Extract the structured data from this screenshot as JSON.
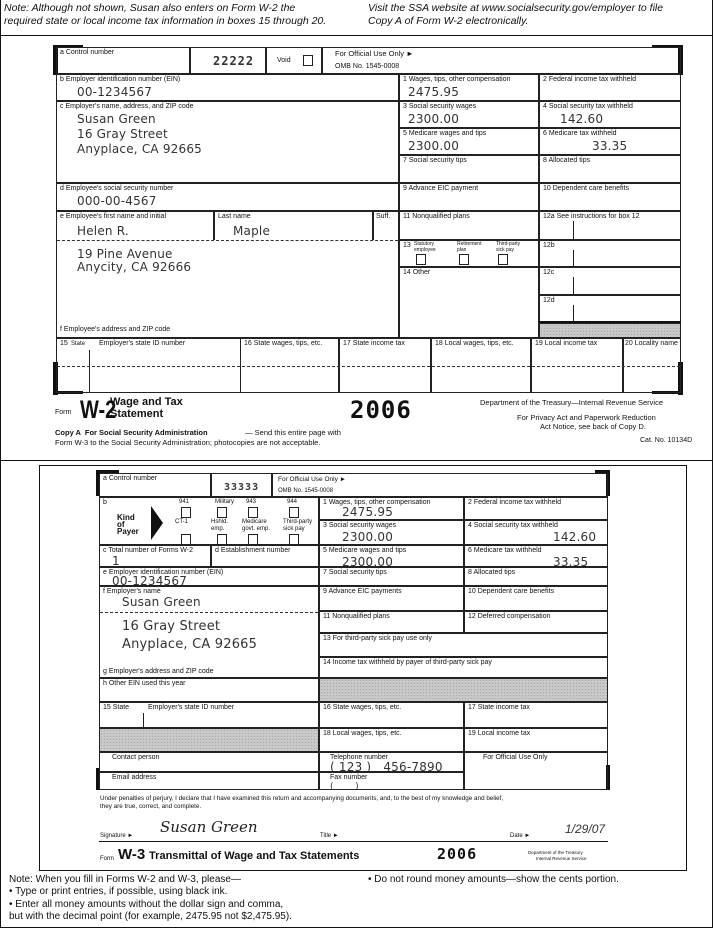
{
  "top_notes": {
    "left_line1": "Note: Although not shown, Susan also enters on Form W-2 the",
    "left_line2": "required state or local income tax information in boxes 15 through 20.",
    "right_line1": "Visit the SSA website at www.socialsecurity.gov/employer to file",
    "right_line2": "Copy A of Form W-2 electronically."
  },
  "w2": {
    "a": {
      "label": "a  Control number",
      "value": "22222"
    },
    "void_label": "Void",
    "official": {
      "line1": "For Official Use Only ►",
      "line2": "OMB No. 1545-0008"
    },
    "b": {
      "label": "b  Employer identification number (EIN)",
      "value": "00-1234567"
    },
    "box1": {
      "label": "1   Wages, tips, other compensation",
      "value": "2475.95"
    },
    "box2": {
      "label": "2   Federal income tax withheld",
      "value": ""
    },
    "c": {
      "label": "c  Employer's name, address, and ZIP code",
      "value": "Susan Green\n16 Gray Street\nAnyplace, CA 92665"
    },
    "box3": {
      "label": "3   Social security wages",
      "value": "2300.00"
    },
    "box4": {
      "label": "4   Social security tax withheld",
      "value": "142.60"
    },
    "box5": {
      "label": "5   Medicare wages and tips",
      "value": "2300.00"
    },
    "box6": {
      "label": "6   Medicare tax withheld",
      "value": "33.35"
    },
    "box7": {
      "label": "7   Social security tips",
      "value": ""
    },
    "box8": {
      "label": "8   Allocated tips",
      "value": ""
    },
    "d": {
      "label": "d  Employee's social security number",
      "value": "000-00-4567"
    },
    "box9": {
      "label": "9   Advance EIC payment",
      "value": ""
    },
    "box10": {
      "label": "10   Dependent care benefits",
      "value": ""
    },
    "e": {
      "label": "e  Employee's first name and initial",
      "value": "Helen R."
    },
    "last": {
      "label": "Last name",
      "value": "Maple"
    },
    "suff": {
      "label": "Suff."
    },
    "box11": {
      "label": "11   Nonqualified plans"
    },
    "box12a": {
      "label": "12a See instructions for box 12"
    },
    "address": {
      "value": "19 Pine Avenue\nAnycity, CA 92666",
      "label": "f   Employee's address and ZIP code"
    },
    "box13": {
      "label": "13",
      "statutory": "Statutory employee",
      "retirement": "Retirement plan",
      "thirdparty": "Third-party sick pay"
    },
    "box14": {
      "label": "14   Other"
    },
    "box12b": {
      "label": "12b"
    },
    "box12c": {
      "label": "12c"
    },
    "box12d": {
      "label": "12d"
    },
    "code_label": "Code",
    "box15": {
      "label": "15",
      "state": "State",
      "id": "Employer's state ID number"
    },
    "box16": {
      "label": "16 State wages, tips, etc."
    },
    "box17": {
      "label": "17  State income tax"
    },
    "box18": {
      "label": "18 Local wages, tips, etc."
    },
    "box19": {
      "label": "19  Local income tax"
    },
    "box20": {
      "label": "20 Locality name"
    },
    "footer": {
      "form": "Form",
      "form_name": "W-2",
      "title1": "Wage and Tax",
      "title2": "Statement",
      "year": "2006",
      "dept": "Department of the Treasury—Internal Revenue Service",
      "privacy1": "For Privacy Act and Paperwork Reduction",
      "privacy2": "Act Notice, see back of Copy D.",
      "copy1_bold": "Copy A  For Social Security Administration",
      "copy1_rest": " — Send this entire page with",
      "copy2": "Form W-3 to the Social Security Administration; photocopies are not acceptable.",
      "cat": "Cat. No. 10134D"
    }
  },
  "w3": {
    "a": {
      "label": "a   Control number",
      "value": "33333"
    },
    "official": {
      "line1": "For Official Use Only ►",
      "line2": "OMB No. 1545-0008"
    },
    "b": {
      "label": "b",
      "kind": "Kind\nof\nPayer",
      "top": [
        "941",
        "Military",
        "943",
        "944"
      ],
      "bottom": [
        "CT-1",
        "Hshld.\nemp.",
        "Medicare\ngovt. emp.",
        "Third-party\nsick pay"
      ]
    },
    "c": {
      "label": "c   Total number of Forms W-2",
      "value": "1"
    },
    "d": {
      "label": "d   Establishment number"
    },
    "e": {
      "label": "e   Employer identification number (EIN)",
      "value": "00-1234567"
    },
    "f": {
      "label": "f   Employer's name",
      "value": "Susan Green"
    },
    "address": {
      "value": "16 Gray Street\nAnyplace, CA 92665"
    },
    "g": {
      "label": "g   Employer's address and ZIP code"
    },
    "h": {
      "label": "h   Other EIN used this year"
    },
    "box1": {
      "label": "1   Wages, tips, other compensation",
      "value": "2475.95"
    },
    "box2": {
      "label": "2   Federal income tax withheld"
    },
    "box3": {
      "label": "3   Social security wages",
      "value": "2300.00"
    },
    "box4": {
      "label": "4   Social security tax withheld",
      "value": "142.60"
    },
    "box5": {
      "label": "5   Medicare wages and tips",
      "value": "2300.00"
    },
    "box6": {
      "label": "6   Medicare tax withheld",
      "value": "33.35"
    },
    "box7": {
      "label": "7   Social security tips"
    },
    "box8": {
      "label": "8   Allocated tips"
    },
    "box9": {
      "label": "9   Advance EIC payments"
    },
    "box10": {
      "label": "10   Dependent care benefits"
    },
    "box11": {
      "label": "11   Nonqualified plans"
    },
    "box12": {
      "label": "12   Deferred compensation"
    },
    "box13": {
      "label": "13   For third-party sick pay use only"
    },
    "box14": {
      "label": "14   Income tax withheld by payer of third-party sick pay"
    },
    "box15": {
      "label": "15   State",
      "id": "Employer's state ID number"
    },
    "box16": {
      "label": "16   State wages, tips, etc."
    },
    "box17": {
      "label": "17   State income tax"
    },
    "box18": {
      "label": "18   Local wages, tips, etc."
    },
    "box19": {
      "label": "19   Local income tax"
    },
    "contact": {
      "label": "Contact person"
    },
    "telephone": {
      "label": "Telephone number",
      "value": "( 123 )   456-7890"
    },
    "official_use": {
      "label": "For Official Use Only"
    },
    "email": {
      "label": "Email address"
    },
    "fax": {
      "label": "Fax number",
      "value": "(       )"
    },
    "perjury1": "Under penalties of perjury, I declare that I have examined this return and accompanying documents, and, to the best of my knowledge and belief,",
    "perjury2": "they are true, correct, and complete.",
    "signature_label": "Signature ►",
    "signature": "Susan Green",
    "title_label": "Title ►",
    "date_label": "Date ►",
    "date": "1/29/07",
    "footer": {
      "form": "Form",
      "title": "W-3",
      "title_rest": " Transmittal of Wage and Tax Statements",
      "year": "2006",
      "dept1": "Department of the Treasury",
      "dept2": "Internal Revenue Service"
    }
  },
  "bottom_notes": {
    "intro": "Note: When you fill in Forms W-2 and W-3, please—",
    "bullet1": "• Type or print entries, if possible, using black ink.",
    "bullet2a": "• Enter all money amounts without the dollar sign and comma,",
    "bullet2b": "but with the decimal point (for example, 2475.95 not $2,475.95).",
    "bullet3": "• Do not round money amounts—show the cents portion."
  }
}
